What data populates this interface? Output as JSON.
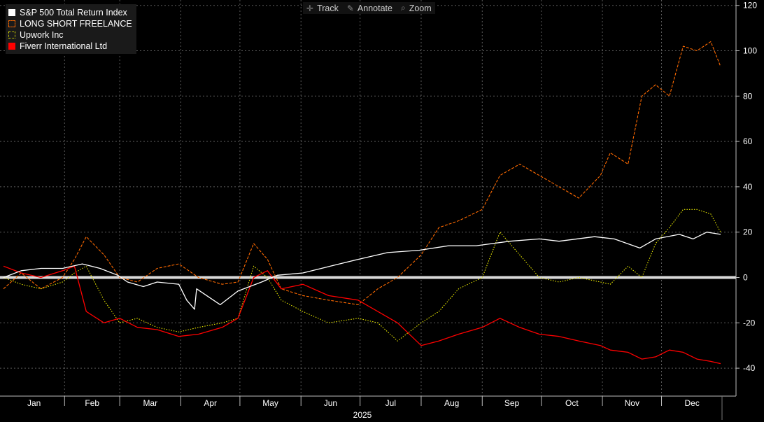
{
  "toolbar": {
    "track_label": "Track",
    "annotate_label": "Annotate",
    "zoom_label": "Zoom"
  },
  "chart_data": {
    "type": "line",
    "x_axis_year_label": "2025",
    "x_tick_labels": [
      "Jan",
      "Feb",
      "Mar",
      "Apr",
      "May",
      "Jun",
      "Jul",
      "Aug",
      "Sep",
      "Oct",
      "Nov",
      "Dec"
    ],
    "ylim": [
      -50,
      120
    ],
    "y_ticks": [
      120,
      100,
      80,
      60,
      40,
      20,
      0,
      -20,
      -40
    ],
    "grid": true,
    "legend_position": "top-left",
    "reference_line": 0,
    "series": [
      {
        "name": "S&P 500 Total Return Index",
        "color": "#ffffff",
        "style": "solid",
        "x": [
          "2025-01-01",
          "2025-01-10",
          "2025-01-20",
          "2025-01-31",
          "2025-02-10",
          "2025-02-19",
          "2025-02-28",
          "2025-03-05",
          "2025-03-13",
          "2025-03-20",
          "2025-03-31",
          "2025-04-04",
          "2025-04-08",
          "2025-04-09",
          "2025-04-21",
          "2025-04-30",
          "2025-05-12",
          "2025-05-20",
          "2025-06-02",
          "2025-06-16",
          "2025-06-30",
          "2025-07-15",
          "2025-07-31",
          "2025-08-15",
          "2025-08-29",
          "2025-09-15",
          "2025-09-30",
          "2025-10-10",
          "2025-10-28",
          "2025-11-07",
          "2025-11-20",
          "2025-11-28",
          "2025-12-10",
          "2025-12-17",
          "2025-12-24",
          "2025-12-31"
        ],
        "y": [
          0,
          3,
          4,
          4,
          6,
          4,
          1,
          -2,
          -4,
          -2,
          -3,
          -10,
          -14,
          -5,
          -12,
          -6,
          -2,
          1,
          2,
          5,
          8,
          11,
          12,
          14,
          14,
          16,
          17,
          16,
          18,
          17,
          13,
          17,
          19,
          17,
          20,
          19
        ]
      },
      {
        "name": "LONG SHORT FREELANCE",
        "color": "#ff6a00",
        "style": "dashed",
        "x": [
          "2025-01-01",
          "2025-01-10",
          "2025-01-20",
          "2025-01-31",
          "2025-02-06",
          "2025-02-12",
          "2025-02-21",
          "2025-03-01",
          "2025-03-10",
          "2025-03-20",
          "2025-03-31",
          "2025-04-10",
          "2025-04-22",
          "2025-04-30",
          "2025-05-08",
          "2025-05-15",
          "2025-05-22",
          "2025-06-02",
          "2025-06-15",
          "2025-06-30",
          "2025-07-10",
          "2025-07-20",
          "2025-08-01",
          "2025-08-10",
          "2025-08-20",
          "2025-09-01",
          "2025-09-10",
          "2025-09-20",
          "2025-09-30",
          "2025-10-10",
          "2025-10-20",
          "2025-10-31",
          "2025-11-05",
          "2025-11-14",
          "2025-11-21",
          "2025-11-28",
          "2025-12-05",
          "2025-12-12",
          "2025-12-19",
          "2025-12-26",
          "2025-12-31"
        ],
        "y": [
          -5,
          2,
          -5,
          0,
          8,
          18,
          10,
          0,
          -2,
          4,
          6,
          0,
          -3,
          -2,
          15,
          8,
          -5,
          -8,
          -10,
          -12,
          -5,
          0,
          10,
          22,
          25,
          30,
          45,
          50,
          45,
          40,
          35,
          45,
          55,
          50,
          80,
          85,
          80,
          102,
          100,
          104,
          93
        ]
      },
      {
        "name": "Upwork Inc",
        "color": "#e6e600",
        "style": "dotted",
        "x": [
          "2025-01-01",
          "2025-01-10",
          "2025-01-20",
          "2025-01-31",
          "2025-02-06",
          "2025-02-12",
          "2025-02-21",
          "2025-03-01",
          "2025-03-10",
          "2025-03-20",
          "2025-03-31",
          "2025-04-10",
          "2025-04-22",
          "2025-04-30",
          "2025-05-08",
          "2025-05-15",
          "2025-05-22",
          "2025-06-02",
          "2025-06-15",
          "2025-06-30",
          "2025-07-10",
          "2025-07-20",
          "2025-08-01",
          "2025-08-10",
          "2025-08-20",
          "2025-09-01",
          "2025-09-10",
          "2025-09-20",
          "2025-09-30",
          "2025-10-10",
          "2025-10-20",
          "2025-10-31",
          "2025-11-05",
          "2025-11-14",
          "2025-11-21",
          "2025-11-28",
          "2025-12-05",
          "2025-12-12",
          "2025-12-19",
          "2025-12-26",
          "2025-12-31"
        ],
        "y": [
          0,
          -3,
          -5,
          -2,
          2,
          5,
          -10,
          -20,
          -18,
          -22,
          -24,
          -22,
          -20,
          -18,
          5,
          0,
          -10,
          -15,
          -20,
          -18,
          -20,
          -28,
          -20,
          -15,
          -5,
          0,
          20,
          10,
          0,
          -2,
          0,
          -2,
          -3,
          5,
          0,
          15,
          22,
          30,
          30,
          28,
          20
        ]
      },
      {
        "name": "Fiverr International Ltd",
        "color": "#ff0000",
        "style": "solid",
        "x": [
          "2025-01-01",
          "2025-01-10",
          "2025-01-20",
          "2025-01-31",
          "2025-02-06",
          "2025-02-12",
          "2025-02-21",
          "2025-03-01",
          "2025-03-10",
          "2025-03-20",
          "2025-03-31",
          "2025-04-10",
          "2025-04-22",
          "2025-04-30",
          "2025-05-08",
          "2025-05-15",
          "2025-05-22",
          "2025-06-02",
          "2025-06-15",
          "2025-06-30",
          "2025-07-10",
          "2025-07-20",
          "2025-08-01",
          "2025-08-10",
          "2025-08-20",
          "2025-09-01",
          "2025-09-10",
          "2025-09-20",
          "2025-09-30",
          "2025-10-10",
          "2025-10-20",
          "2025-10-31",
          "2025-11-05",
          "2025-11-14",
          "2025-11-21",
          "2025-11-28",
          "2025-12-05",
          "2025-12-12",
          "2025-12-19",
          "2025-12-26",
          "2025-12-31"
        ],
        "y": [
          5,
          2,
          0,
          3,
          5,
          -15,
          -20,
          -18,
          -22,
          -23,
          -26,
          -25,
          -22,
          -18,
          0,
          3,
          -5,
          -3,
          -8,
          -10,
          -15,
          -20,
          -30,
          -28,
          -25,
          -22,
          -18,
          -22,
          -25,
          -26,
          -28,
          -30,
          -32,
          -33,
          -36,
          -35,
          -32,
          -33,
          -36,
          -37,
          -38
        ]
      }
    ]
  }
}
